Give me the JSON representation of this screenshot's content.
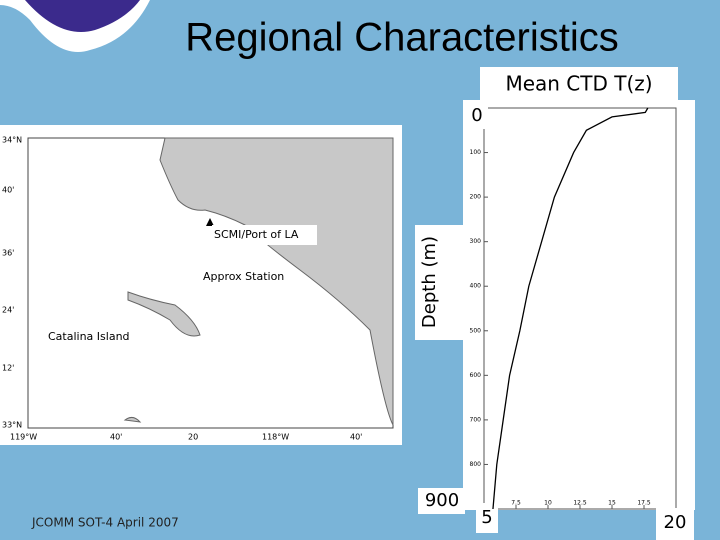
{
  "slide": {
    "title": "Regional Characteristics",
    "footer": "JCOMM SOT-4 April 2007"
  },
  "map": {
    "lat_labels": [
      "34°N",
      "40'",
      "36'",
      "24'",
      "12'",
      "33°N"
    ],
    "lon_labels": [
      "119°W",
      "40'",
      "20",
      "118°W",
      "40'"
    ],
    "places": [
      "SCMI/Port of LA",
      "Approx Station",
      "Catalina Island"
    ]
  },
  "chart_data": {
    "type": "line",
    "title": "Mean CTD T(z)",
    "y_label": "Depth (m)",
    "x": [
      17.8,
      17.6,
      15,
      13,
      12,
      10.5,
      9.5,
      8.5,
      7.8,
      7,
      6.5,
      6,
      5.7
    ],
    "values": [
      0,
      10,
      20,
      50,
      100,
      200,
      300,
      400,
      500,
      600,
      700,
      800,
      900
    ],
    "xlim": [
      5,
      20
    ],
    "xticks": [
      5,
      7.5,
      10,
      12.5,
      15,
      17.5,
      20
    ],
    "ylim": [
      0,
      900
    ],
    "yticks": [
      0,
      100,
      200,
      300,
      400,
      500,
      600,
      700,
      800,
      900
    ],
    "color": "#000000"
  }
}
